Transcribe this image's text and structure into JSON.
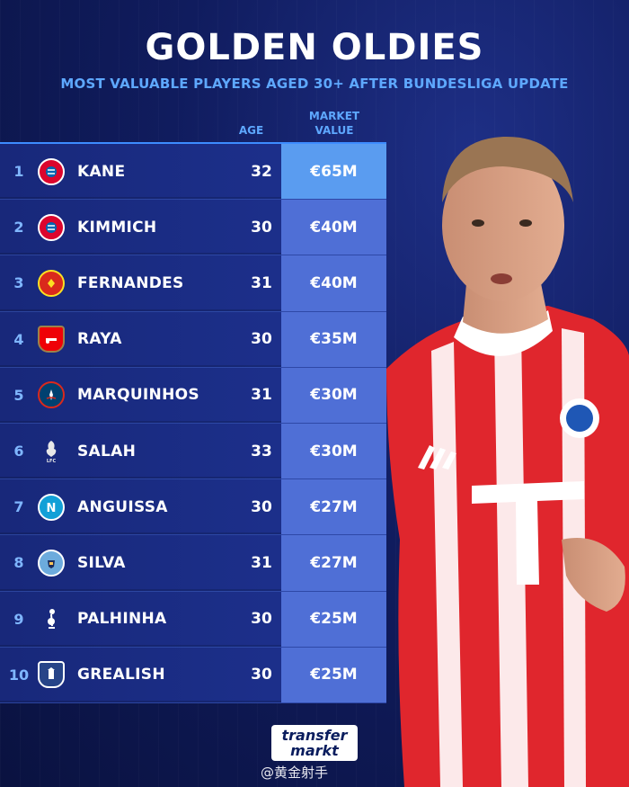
{
  "header": {
    "title": "GOLDEN OLDIES",
    "subtitle": "MOST VALUABLE PLAYERS AGED 30+ AFTER BUNDESLIGA UPDATE"
  },
  "columns": {
    "age": "AGE",
    "market_value_line1": "MARKET",
    "market_value_line2": "VALUE"
  },
  "rows": [
    {
      "rank": "1",
      "club_icon": "bayern-crest-icon",
      "name": "KANE",
      "age": "32",
      "value": "€65M"
    },
    {
      "rank": "2",
      "club_icon": "bayern-crest-icon",
      "name": "KIMMICH",
      "age": "30",
      "value": "€40M"
    },
    {
      "rank": "3",
      "club_icon": "man-united-crest-icon",
      "name": "FERNANDES",
      "age": "31",
      "value": "€40M"
    },
    {
      "rank": "4",
      "club_icon": "arsenal-crest-icon",
      "name": "RAYA",
      "age": "30",
      "value": "€35M"
    },
    {
      "rank": "5",
      "club_icon": "psg-crest-icon",
      "name": "MARQUINHOS",
      "age": "31",
      "value": "€30M"
    },
    {
      "rank": "6",
      "club_icon": "liverpool-crest-icon",
      "name": "SALAH",
      "age": "33",
      "value": "€30M"
    },
    {
      "rank": "7",
      "club_icon": "napoli-crest-icon",
      "name": "ANGUISSA",
      "age": "30",
      "value": "€27M"
    },
    {
      "rank": "8",
      "club_icon": "man-city-crest-icon",
      "name": "SILVA",
      "age": "31",
      "value": "€27M"
    },
    {
      "rank": "9",
      "club_icon": "tottenham-crest-icon",
      "name": "PALHINHA",
      "age": "30",
      "value": "€25M"
    },
    {
      "rank": "10",
      "club_icon": "everton-crest-icon",
      "name": "GREALISH",
      "age": "30",
      "value": "€25M"
    }
  ],
  "branding": {
    "logo_line1": "transfer",
    "logo_line2": "markt",
    "watermark": "@黄金射手"
  },
  "colors": {
    "accent": "#5ea8ff",
    "value_highlight": "#5a9cf0",
    "value_cell": "#4f6fd6",
    "jersey_red": "#e0262d"
  }
}
